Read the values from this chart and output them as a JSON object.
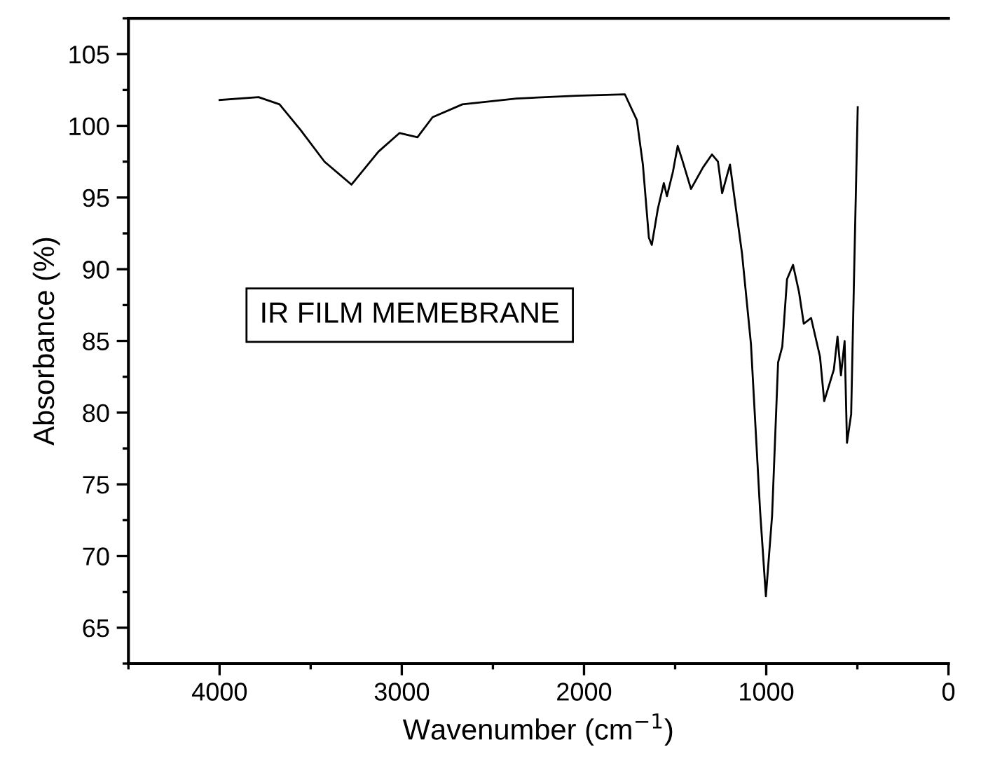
{
  "chart_data": {
    "type": "line",
    "xlabel": "Wavenumber (cm$^{−1}$)",
    "ylabel": "Absorbance (%)",
    "annotations": [
      "IR FILM MEMEBRANE"
    ],
    "xlim": [
      4500,
      0
    ],
    "xticks": [
      4000,
      3000,
      2000,
      1000,
      0
    ],
    "ylim": [
      62.5,
      107.5
    ],
    "yticks": [
      65,
      70,
      75,
      80,
      85,
      90,
      95,
      100,
      105
    ],
    "grid": false,
    "legend": false,
    "marker": "none",
    "line_style": "solid",
    "series": [
      {
        "color": "#000000",
        "x": [
          4000,
          3786,
          3671,
          3555,
          3424,
          3276,
          3128,
          3012,
          2914,
          2831,
          2667,
          2370,
          2041,
          1776,
          1710,
          1677,
          1644,
          1628,
          1595,
          1562,
          1545,
          1512,
          1486,
          1463,
          1413,
          1347,
          1298,
          1265,
          1242,
          1199,
          1166,
          1133,
          1084,
          1034,
          1002,
          968,
          935,
          912,
          886,
          853,
          820,
          794,
          754,
          705,
          682,
          629,
          609,
          590,
          570,
          557,
          534,
          517,
          498
        ],
        "values": [
          101.8,
          102.0,
          101.5,
          99.7,
          97.5,
          95.9,
          98.2,
          99.5,
          99.2,
          100.6,
          101.5,
          101.9,
          102.1,
          102.2,
          100.4,
          97.3,
          92.2,
          91.7,
          94.2,
          96.0,
          95.1,
          96.8,
          98.6,
          97.7,
          95.6,
          97.1,
          98.0,
          97.5,
          95.3,
          97.3,
          94.2,
          91.1,
          84.8,
          73.2,
          67.2,
          72.8,
          83.5,
          84.6,
          89.3,
          90.3,
          88.4,
          86.2,
          86.6,
          83.9,
          80.8,
          83.0,
          85.3,
          82.6,
          85.0,
          77.9,
          79.9,
          90.2,
          101.3
        ]
      }
    ]
  }
}
